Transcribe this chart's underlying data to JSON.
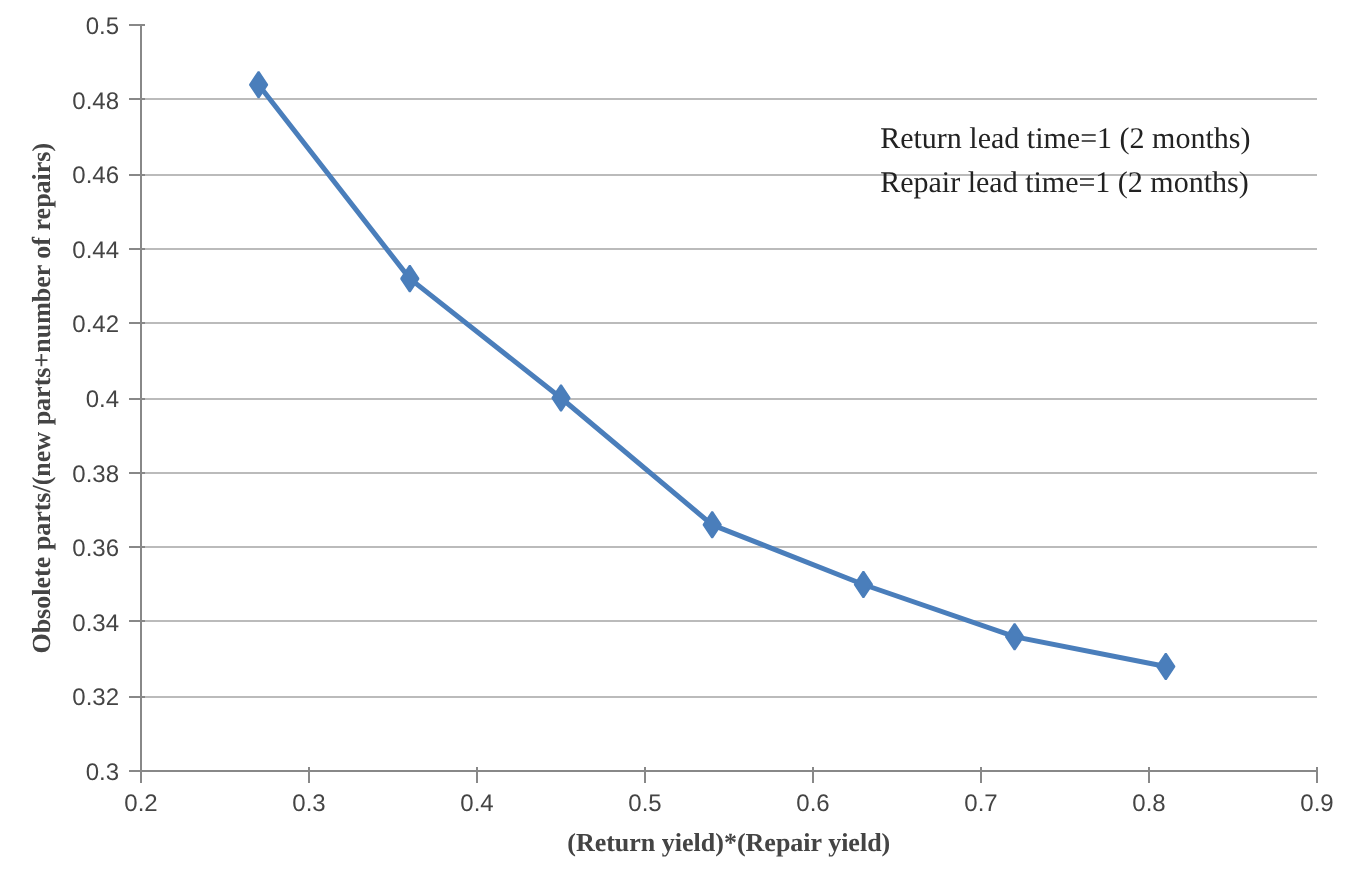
{
  "chart_data": {
    "type": "line",
    "xlabel": "(Return yield)*(Repair yield)",
    "ylabel": "Obsolete parts/(new parts+number of repairs)",
    "x": [
      0.27,
      0.36,
      0.45,
      0.54,
      0.63,
      0.72,
      0.81
    ],
    "series": [
      {
        "color": "#4a7ebb",
        "values": [
          0.484,
          0.432,
          0.4,
          0.366,
          0.35,
          0.336,
          0.328
        ]
      }
    ],
    "xlim": [
      0.2,
      0.9
    ],
    "xticks": [
      0.2,
      0.3,
      0.4,
      0.5,
      0.6,
      0.7,
      0.8,
      0.9
    ],
    "ylim": [
      0.3,
      0.5
    ],
    "yticks": [
      0.3,
      0.32,
      0.34,
      0.36,
      0.38,
      0.4,
      0.42,
      0.44,
      0.46,
      0.48,
      0.5
    ],
    "grid": "y",
    "marker": "diamond",
    "line_style": "solid",
    "annotations": [
      "Return lead time=1 (2 months)",
      "Repair lead time=1 (2 months)"
    ]
  }
}
